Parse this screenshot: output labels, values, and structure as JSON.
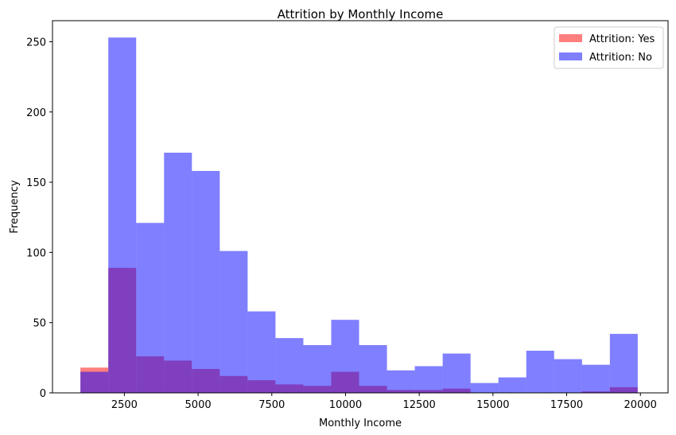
{
  "chart_data": {
    "type": "bar",
    "title": "Attrition by Monthly Income",
    "xlabel": "Monthly Income",
    "ylabel": "Frequency",
    "xlim": [
      62,
      20938
    ],
    "ylim": [
      0,
      265
    ],
    "xticks": [
      2500,
      5000,
      7500,
      10000,
      12500,
      15000,
      17500,
      20000
    ],
    "yticks": [
      0,
      50,
      100,
      150,
      200,
      250
    ],
    "legend_position": "top-right",
    "bin_edges": [
      1009,
      1955,
      2900,
      3845,
      4790,
      5735,
      6680,
      7625,
      8570,
      9515,
      10460,
      11405,
      12350,
      13295,
      14240,
      15185,
      16130,
      17075,
      18020,
      18965,
      19910
    ],
    "series": [
      {
        "name": "Attrition: Yes",
        "color": "#ff0000",
        "opacity": 0.5,
        "counts": [
          18,
          89,
          26,
          23,
          17,
          12,
          9,
          6,
          5,
          15,
          5,
          2,
          2,
          3,
          0,
          0,
          0,
          0,
          1,
          4
        ]
      },
      {
        "name": "Attrition: No",
        "color": "#0000ff",
        "opacity": 0.5,
        "counts": [
          15,
          253,
          121,
          171,
          158,
          101,
          58,
          39,
          34,
          52,
          34,
          16,
          19,
          28,
          7,
          11,
          30,
          24,
          20,
          42
        ]
      }
    ]
  }
}
